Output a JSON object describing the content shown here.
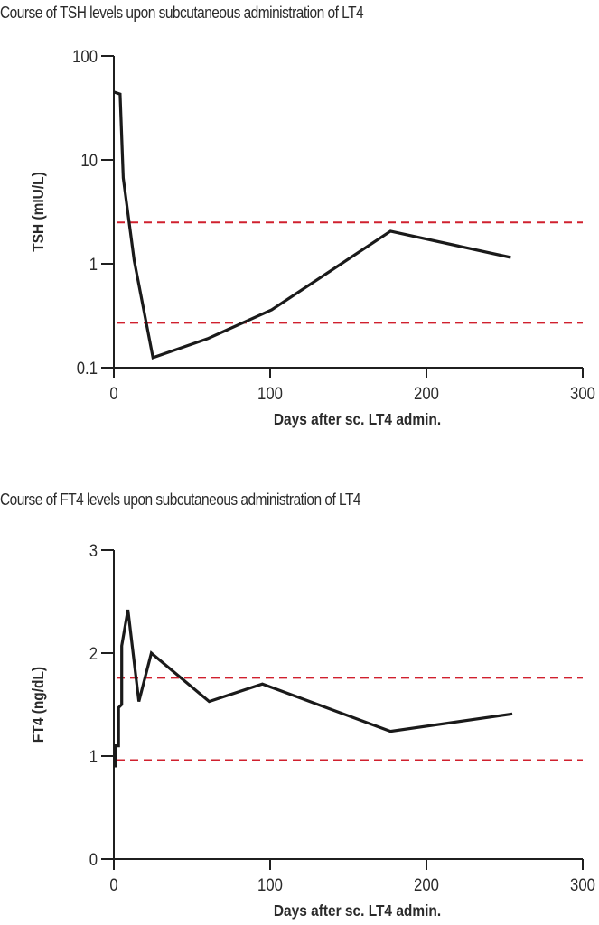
{
  "chart_data": [
    {
      "type": "line",
      "title": "Course of TSH levels upon subcutaneous administration of LT4",
      "xlabel": "Days after sc. LT4 admin.",
      "ylabel": "TSH (mIU/L)",
      "yscale": "log",
      "xlim": [
        0,
        300
      ],
      "ylim": [
        0.1,
        100
      ],
      "xticks": [
        0,
        100,
        200,
        300
      ],
      "xtick_labels": [
        "0",
        "100",
        "200",
        "300"
      ],
      "yticks": [
        100,
        10,
        1,
        0.1
      ],
      "ytick_labels": [
        "100",
        "10",
        "1",
        "0.1"
      ],
      "grid": false,
      "series": [
        {
          "name": "TSH",
          "color": "#1a1a1a",
          "x": [
            0,
            4,
            6,
            13,
            25,
            60,
            101,
            177,
            254
          ],
          "y": [
            45,
            43,
            6.7,
            1.08,
            0.125,
            0.19,
            0.36,
            2.06,
            1.15
          ]
        }
      ],
      "reference_lines": [
        {
          "name": "upper-reference-limit",
          "y": 2.5,
          "color": "#d0202e",
          "style": "dashed"
        },
        {
          "name": "lower-reference-limit",
          "y": 0.27,
          "color": "#d0202e",
          "style": "dashed"
        }
      ]
    },
    {
      "type": "line",
      "title": "Course of FT4 levels upon subcutaneous administration of LT4",
      "xlabel": "Days after sc. LT4 admin.",
      "ylabel": "FT4 (ng/dL)",
      "yscale": "linear",
      "xlim": [
        0,
        300
      ],
      "ylim": [
        0,
        3
      ],
      "xticks": [
        0,
        100,
        200,
        300
      ],
      "xtick_labels": [
        "0",
        "100",
        "200",
        "300"
      ],
      "yticks": [
        3,
        2,
        1,
        0
      ],
      "ytick_labels": [
        "3",
        "2",
        "1",
        "0"
      ],
      "grid": false,
      "series": [
        {
          "name": "FT4",
          "color": "#1a1a1a",
          "x": [
            1,
            1,
            3,
            3,
            5,
            5,
            9,
            16,
            24,
            61,
            95,
            177,
            255
          ],
          "y": [
            0.89,
            1.1,
            1.1,
            1.47,
            1.5,
            2.07,
            2.42,
            1.53,
            2.0,
            1.53,
            1.7,
            1.24,
            1.41
          ]
        }
      ],
      "reference_lines": [
        {
          "name": "upper-reference-limit",
          "y": 1.76,
          "color": "#d0202e",
          "style": "dashed"
        },
        {
          "name": "lower-reference-limit",
          "y": 0.96,
          "color": "#d0202e",
          "style": "dashed"
        }
      ]
    }
  ]
}
